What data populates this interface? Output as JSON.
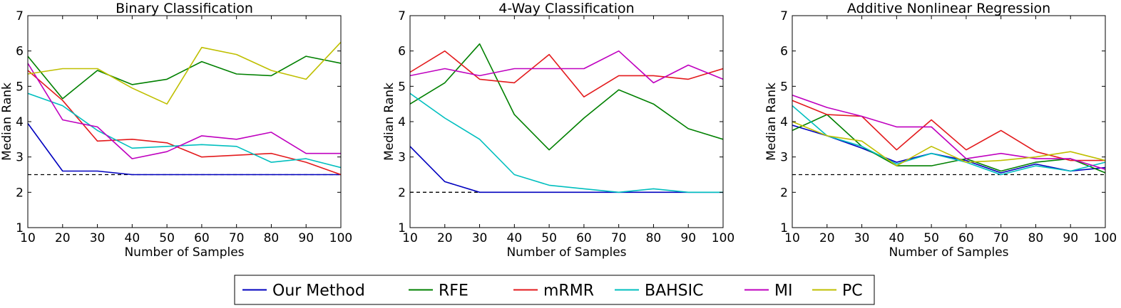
{
  "chart_data": [
    {
      "type": "line",
      "title": "Binary Classification",
      "xlabel": "Number of Samples",
      "ylabel": "Median Rank",
      "xlim": [
        10,
        100
      ],
      "ylim": [
        1,
        7
      ],
      "xticks": [
        10,
        20,
        30,
        40,
        50,
        60,
        70,
        80,
        90,
        100
      ],
      "yticks": [
        1,
        2,
        3,
        4,
        5,
        6,
        7
      ],
      "x": [
        10,
        20,
        30,
        40,
        50,
        60,
        70,
        80,
        90,
        100
      ],
      "reference_line": {
        "y": 2.5,
        "style": "dashed",
        "color": "#000000"
      },
      "series": [
        {
          "name": "Our Method",
          "color": "#0000bf",
          "values": [
            3.95,
            2.6,
            2.6,
            2.5,
            2.5,
            2.5,
            2.5,
            2.5,
            2.5,
            2.5
          ]
        },
        {
          "name": "RFE",
          "color": "#008000",
          "values": [
            5.85,
            4.65,
            5.45,
            5.05,
            5.2,
            5.7,
            5.35,
            5.3,
            5.85,
            5.65
          ]
        },
        {
          "name": "mRMR",
          "color": "#e31a1c",
          "values": [
            5.45,
            4.6,
            3.45,
            3.5,
            3.4,
            3.0,
            3.05,
            3.1,
            2.85,
            2.5
          ]
        },
        {
          "name": "BAHSIC",
          "color": "#00bfbf",
          "values": [
            4.8,
            4.45,
            3.75,
            3.25,
            3.3,
            3.35,
            3.3,
            2.85,
            2.95,
            2.7
          ]
        },
        {
          "name": "MI",
          "color": "#bf00bf",
          "values": [
            5.65,
            4.05,
            3.85,
            2.95,
            3.15,
            3.6,
            3.5,
            3.7,
            3.1,
            3.1
          ]
        },
        {
          "name": "PC",
          "color": "#bfbf00",
          "values": [
            5.35,
            5.5,
            5.5,
            4.95,
            4.5,
            6.1,
            5.9,
            5.45,
            5.2,
            6.25
          ]
        }
      ]
    },
    {
      "type": "line",
      "title": "4-Way Classification",
      "xlabel": "Number of Samples",
      "ylabel": "Median Rank",
      "xlim": [
        10,
        100
      ],
      "ylim": [
        1,
        7
      ],
      "xticks": [
        10,
        20,
        30,
        40,
        50,
        60,
        70,
        80,
        90,
        100
      ],
      "yticks": [
        1,
        2,
        3,
        4,
        5,
        6,
        7
      ],
      "x": [
        10,
        20,
        30,
        40,
        50,
        60,
        70,
        80,
        90,
        100
      ],
      "reference_line": {
        "y": 2.0,
        "style": "dashed",
        "color": "#000000"
      },
      "series": [
        {
          "name": "Our Method",
          "color": "#0000bf",
          "values": [
            3.3,
            2.3,
            2.0,
            2.0,
            2.0,
            2.0,
            2.0,
            2.0,
            2.0,
            2.0
          ]
        },
        {
          "name": "RFE",
          "color": "#008000",
          "values": [
            4.5,
            5.1,
            6.2,
            4.2,
            3.2,
            4.1,
            4.9,
            4.5,
            3.8,
            3.5
          ]
        },
        {
          "name": "mRMR",
          "color": "#e31a1c",
          "values": [
            5.4,
            6.0,
            5.2,
            5.1,
            5.9,
            4.7,
            5.3,
            5.3,
            5.2,
            5.5
          ]
        },
        {
          "name": "BAHSIC",
          "color": "#00bfbf",
          "values": [
            4.8,
            4.1,
            3.5,
            2.5,
            2.2,
            2.1,
            2.0,
            2.1,
            2.0,
            2.0
          ]
        },
        {
          "name": "MI",
          "color": "#bf00bf",
          "values": [
            5.3,
            5.5,
            5.3,
            5.5,
            5.5,
            5.5,
            6.0,
            5.1,
            5.6,
            5.2
          ]
        },
        {
          "name": "PC",
          "color": "#bfbf00",
          "values": [
            null,
            null,
            null,
            null,
            null,
            null,
            null,
            null,
            null,
            null
          ]
        }
      ]
    },
    {
      "type": "line",
      "title": "Additive Nonlinear Regression",
      "xlabel": "Number of Samples",
      "ylabel": "Median Rank",
      "xlim": [
        10,
        100
      ],
      "ylim": [
        1,
        7
      ],
      "xticks": [
        10,
        20,
        30,
        40,
        50,
        60,
        70,
        80,
        90,
        100
      ],
      "yticks": [
        1,
        2,
        3,
        4,
        5,
        6,
        7
      ],
      "x": [
        10,
        20,
        30,
        40,
        50,
        60,
        70,
        80,
        90,
        100
      ],
      "reference_line": {
        "y": 2.5,
        "style": "dashed",
        "color": "#000000"
      },
      "series": [
        {
          "name": "Our Method",
          "color": "#0000bf",
          "values": [
            3.9,
            3.6,
            3.25,
            2.85,
            3.1,
            2.9,
            2.55,
            2.8,
            2.6,
            2.7
          ]
        },
        {
          "name": "RFE",
          "color": "#008000",
          "values": [
            3.75,
            4.2,
            3.3,
            2.75,
            2.75,
            2.95,
            2.6,
            2.85,
            2.95,
            2.55
          ]
        },
        {
          "name": "mRMR",
          "color": "#e31a1c",
          "values": [
            4.6,
            4.2,
            4.15,
            3.2,
            4.05,
            3.2,
            3.75,
            3.15,
            2.9,
            2.9
          ]
        },
        {
          "name": "BAHSIC",
          "color": "#00bfbf",
          "values": [
            4.45,
            3.6,
            3.3,
            2.8,
            3.1,
            2.85,
            2.5,
            2.75,
            2.6,
            2.85
          ]
        },
        {
          "name": "MI",
          "color": "#bf00bf",
          "values": [
            4.75,
            4.4,
            4.15,
            3.85,
            3.85,
            2.95,
            3.1,
            2.95,
            2.95,
            2.65
          ]
        },
        {
          "name": "PC",
          "color": "#bfbf00",
          "values": [
            4.0,
            3.6,
            3.45,
            2.75,
            3.3,
            2.85,
            2.9,
            3.0,
            3.15,
            2.9
          ]
        }
      ]
    }
  ],
  "legend": {
    "placement": "bottom-center",
    "entries": [
      {
        "label": "Our Method",
        "color": "#0000bf"
      },
      {
        "label": "RFE",
        "color": "#008000"
      },
      {
        "label": "mRMR",
        "color": "#e31a1c"
      },
      {
        "label": "BAHSIC",
        "color": "#00bfbf"
      },
      {
        "label": "MI",
        "color": "#bf00bf"
      },
      {
        "label": "PC",
        "color": "#bfbf00"
      }
    ]
  }
}
